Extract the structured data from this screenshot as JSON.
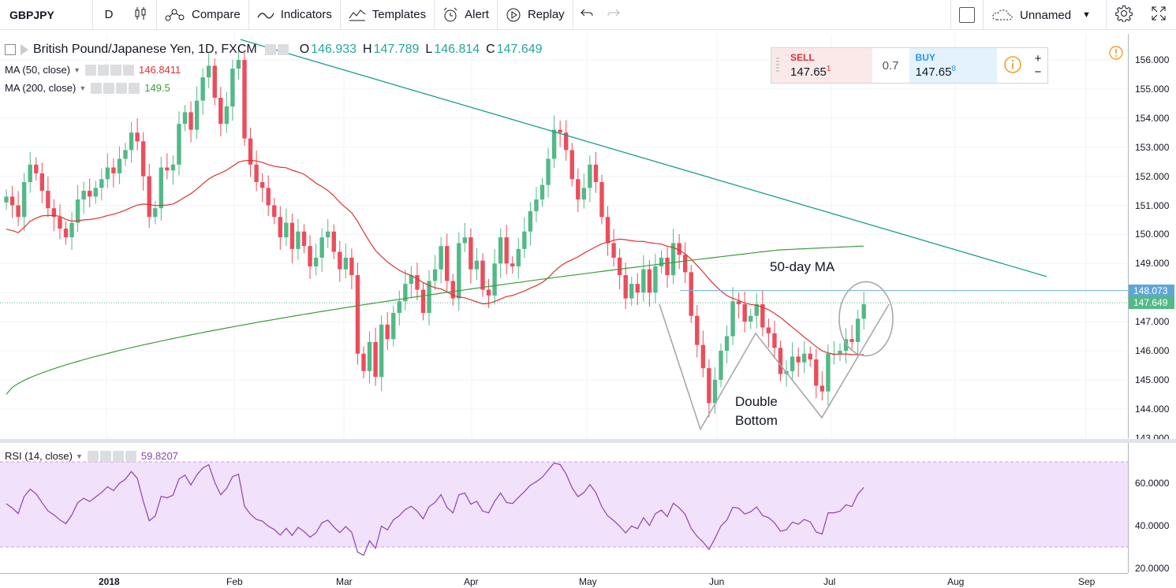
{
  "toolbar": {
    "symbol": "GBPJPY",
    "interval": "D",
    "compare": "Compare",
    "indicators": "Indicators",
    "templates": "Templates",
    "alert": "Alert",
    "replay": "Replay",
    "layout_name": "Unnamed"
  },
  "legend": {
    "title": "British Pound/Japanese Yen, 1D, FXCM",
    "open_k": "O",
    "open": "146.933",
    "high_k": "H",
    "high": "147.789",
    "low_k": "L",
    "low": "146.814",
    "close_k": "C",
    "close": "147.649",
    "ma50_label": "MA (50, close)",
    "ma50_value": "146.8411",
    "ma200_label": "MA (200, close)",
    "ma200_value": "149.5",
    "rsi_label": "RSI (14, close)",
    "rsi_value": "59.8207"
  },
  "trade": {
    "sell_label": "SELL",
    "sell_price": "147.65",
    "sell_sup": "1",
    "spread": "0.7",
    "buy_label": "BUY",
    "buy_price": "147.65",
    "buy_sup": "8",
    "plus": "+",
    "minus": "−"
  },
  "annotations": {
    "ma_note": "50-day MA",
    "pattern_line1": "Double",
    "pattern_line2": "Bottom"
  },
  "price_axis": {
    "ticks": [
      "156.000",
      "155.000",
      "154.000",
      "153.000",
      "152.000",
      "151.000",
      "150.000",
      "149.000",
      "148.000",
      "147.000",
      "146.000",
      "145.000",
      "144.000",
      "143.000"
    ],
    "tag_high": "148.073",
    "tag_last": "147.649"
  },
  "rsi_axis": {
    "ticks": [
      "60.0000",
      "40.0000",
      "20.0000"
    ]
  },
  "time_axis": {
    "labels": [
      "2018",
      "Feb",
      "Mar",
      "Apr",
      "May",
      "Jun",
      "Jul",
      "Aug",
      "Sep"
    ]
  },
  "colors": {
    "up": "#53b987",
    "down": "#eb4d5c",
    "ma50": "#e03131",
    "ma200": "#3c9c3c",
    "trendline": "#1a9e8f",
    "rsi_line": "#8e44ad",
    "rsi_band": "#f1e1fa",
    "tag_last": "#53b987",
    "tag_high": "#5fa6d6"
  },
  "chart_data": {
    "type": "candlestick",
    "symbol": "GBPJPY",
    "interval": "1D",
    "ylim": [
      143,
      156.5
    ],
    "last_close": 147.649,
    "ma50_last": 146.8411,
    "rsi_last": 59.8207,
    "closes": [
      151.3,
      151.0,
      150.6,
      151.8,
      152.4,
      152.1,
      151.5,
      150.9,
      150.6,
      150.2,
      149.9,
      150.4,
      151.2,
      151.5,
      151.3,
      151.6,
      151.9,
      152.3,
      152.1,
      152.6,
      152.9,
      153.5,
      153.2,
      152.0,
      150.6,
      150.9,
      152.3,
      152.2,
      152.4,
      153.8,
      154.2,
      153.6,
      154.6,
      155.4,
      155.8,
      154.7,
      153.8,
      154.4,
      155.7,
      156.0,
      153.3,
      152.4,
      151.8,
      151.6,
      151.0,
      150.6,
      149.9,
      150.4,
      149.5,
      150.1,
      149.6,
      148.9,
      149.2,
      149.9,
      150.1,
      149.4,
      148.8,
      149.2,
      148.6,
      145.9,
      145.3,
      146.3,
      145.1,
      146.9,
      146.4,
      147.3,
      147.7,
      148.3,
      148.6,
      148.1,
      147.3,
      148.4,
      148.8,
      149.6,
      148.4,
      147.8,
      149.7,
      149.9,
      148.8,
      149.1,
      148.1,
      147.9,
      149.0,
      149.9,
      149.0,
      148.9,
      149.5,
      150.1,
      150.8,
      151.2,
      151.7,
      152.6,
      153.6,
      153.5,
      152.9,
      151.9,
      151.2,
      151.6,
      152.4,
      151.8,
      150.6,
      149.7,
      149.2,
      148.6,
      147.8,
      148.3,
      148.0,
      148.8,
      148.0,
      148.9,
      149.2,
      148.6,
      149.7,
      149.3,
      148.7,
      147.2,
      146.2,
      145.4,
      144.2,
      145.0,
      146.0,
      146.5,
      147.7,
      147.6,
      147.0,
      147.2,
      147.6,
      146.8,
      146.6,
      146.1,
      145.2,
      145.3,
      145.8,
      145.6,
      145.9,
      145.7,
      144.8,
      144.6,
      145.9,
      145.9,
      146.0,
      146.4,
      146.3,
      147.1,
      147.6
    ]
  }
}
